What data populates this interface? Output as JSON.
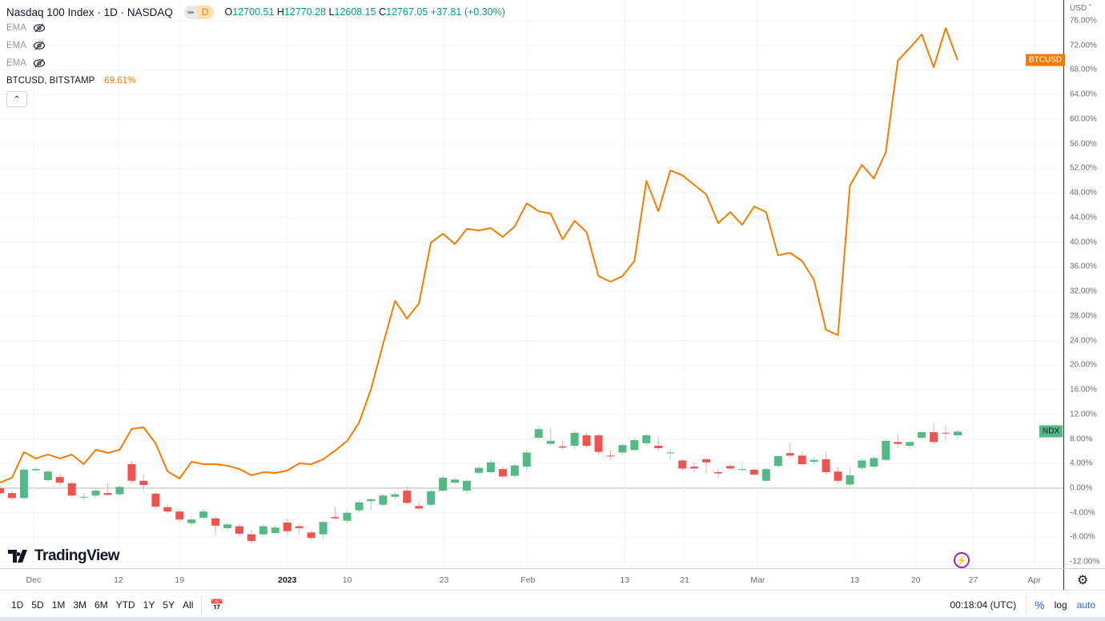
{
  "legend": {
    "title": "Nasdaq 100 Index · 1D · NASDAQ",
    "badge": "D",
    "o_label": "O",
    "o": "12700.51",
    "h_label": "H",
    "h": "12770.28",
    "l_label": "L",
    "l": "12608.15",
    "c_label": "C",
    "c": "12767.05",
    "change": "+37.81 (+0.30%)",
    "ema": [
      "EMA",
      "EMA",
      "EMA"
    ],
    "compare_symbol": "BTCUSD, BITSTAMP",
    "compare_value": "69.61%"
  },
  "axis": {
    "currency": "USD",
    "btc_tag": "BTCUSD",
    "ndx_tag": "NDX"
  },
  "colors": {
    "up": "#26a69a",
    "up_fill": "#53b987",
    "down": "#ef5350",
    "btc": "#f57c00",
    "grid": "#f0f3fa",
    "zero": "#b2b5be"
  },
  "brand": "TradingView",
  "toolbar": {
    "ranges": [
      "1D",
      "5D",
      "1M",
      "3M",
      "6M",
      "YTD",
      "1Y",
      "5Y",
      "All"
    ],
    "clock": "00:18:04 (UTC)",
    "percent": "%",
    "log": "log",
    "auto": "auto"
  },
  "chart_data": {
    "type": "line+candlestick",
    "ylabel": "%",
    "ylim": [
      -12,
      76
    ],
    "yticks": [
      -12,
      -8,
      -4,
      0,
      4,
      8,
      12,
      16,
      20,
      24,
      28,
      32,
      36,
      40,
      44,
      48,
      52,
      56,
      60,
      64,
      68,
      72,
      76
    ],
    "xticks": [
      {
        "label": "Dec",
        "x": 2.8
      },
      {
        "label": "12",
        "x": 9.9
      },
      {
        "label": "19",
        "x": 15.0
      },
      {
        "label": "2023",
        "x": 24.0,
        "bold": true
      },
      {
        "label": "10",
        "x": 29.0
      },
      {
        "label": "23",
        "x": 37.1
      },
      {
        "label": "Feb",
        "x": 44.1
      },
      {
        "label": "13",
        "x": 52.2
      },
      {
        "label": "21",
        "x": 57.2
      },
      {
        "label": "Mar",
        "x": 63.3
      },
      {
        "label": "13",
        "x": 71.4
      },
      {
        "label": "20",
        "x": 76.5
      },
      {
        "label": "27",
        "x": 81.3
      },
      {
        "label": "Apr",
        "x": 86.4
      }
    ],
    "series": [
      {
        "name": "BTCUSD",
        "kind": "line",
        "values": [
          0.91,
          1.69,
          5.86,
          4.82,
          5.47,
          4.82,
          5.47,
          3.9,
          6.25,
          5.73,
          6.25,
          9.63,
          9.89,
          7.29,
          2.73,
          1.56,
          4.29,
          3.9,
          3.9,
          3.64,
          3.12,
          2.08,
          2.6,
          2.47,
          2.86,
          4.03,
          3.9,
          4.69,
          6.12,
          7.68,
          10.67,
          16.14,
          23.43,
          30.45,
          27.59,
          30.06,
          39.95,
          41.38,
          39.69,
          42.17,
          41.91,
          42.3,
          40.86,
          42.56,
          46.33,
          45.03,
          44.64,
          40.47,
          43.47,
          41.64,
          34.49,
          33.58,
          34.49,
          36.96,
          49.97,
          45.03,
          51.67,
          50.88,
          49.32,
          47.76,
          43.08,
          44.9,
          42.82,
          45.81,
          44.9,
          37.87,
          38.26,
          36.96,
          33.84,
          25.77,
          24.86,
          49.19,
          52.58,
          50.36,
          54.66,
          69.5,
          71.58,
          73.79,
          68.45,
          74.83,
          69.61
        ]
      },
      {
        "name": "NDX",
        "kind": "candlestick",
        "ohlc": [
          [
            0,
            0.4,
            -1.1,
            -0.8
          ],
          [
            -0.8,
            -0.4,
            -2.0,
            -1.6
          ],
          [
            -1.6,
            3.3,
            -1.9,
            3.0
          ],
          [
            2.9,
            3.5,
            2.5,
            3.1
          ],
          [
            1.3,
            3.0,
            1.0,
            2.7
          ],
          [
            1.8,
            2.3,
            0.5,
            0.9
          ],
          [
            0.8,
            1.1,
            -1.5,
            -1.2
          ],
          [
            -1.5,
            -0.8,
            -2.0,
            -1.4
          ],
          [
            -1.2,
            0.2,
            -1.6,
            -0.4
          ],
          [
            -0.8,
            0.8,
            -1.3,
            -1.1
          ],
          [
            -1.0,
            0.5,
            -1.3,
            0.2
          ],
          [
            3.9,
            4.4,
            0.8,
            1.2
          ],
          [
            1.2,
            2.2,
            -0.3,
            0.5
          ],
          [
            -0.9,
            -0.6,
            -3.3,
            -3.0
          ],
          [
            -3.1,
            -2.6,
            -4.1,
            -3.8
          ],
          [
            -3.8,
            -3.5,
            -5.5,
            -5.1
          ],
          [
            -5.7,
            -4.6,
            -6.2,
            -5.1
          ],
          [
            -4.8,
            -3.3,
            -5.1,
            -3.8
          ],
          [
            -4.9,
            -4.5,
            -7.6,
            -6.1
          ],
          [
            -6.5,
            -5.6,
            -7.0,
            -5.9
          ],
          [
            -6.2,
            -5.8,
            -7.8,
            -7.4
          ],
          [
            -7.5,
            -6.8,
            -9.0,
            -8.6
          ],
          [
            -7.5,
            -5.9,
            -7.9,
            -6.2
          ],
          [
            -7.3,
            -6.0,
            -7.6,
            -6.4
          ],
          [
            -5.6,
            -5.0,
            -7.5,
            -7.0
          ],
          [
            -6.2,
            -5.8,
            -7.6,
            -6.5
          ],
          [
            -7.2,
            -6.9,
            -8.4,
            -8.1
          ],
          [
            -7.5,
            -5.2,
            -8.4,
            -5.5
          ],
          [
            -4.7,
            -3.1,
            -5.2,
            -4.9
          ],
          [
            -5.3,
            -3.7,
            -5.6,
            -4.0
          ],
          [
            -3.6,
            -2.0,
            -3.9,
            -2.3
          ],
          [
            -2.1,
            -1.7,
            -3.6,
            -1.8
          ],
          [
            -2.7,
            -0.9,
            -3.0,
            -1.2
          ],
          [
            -1.4,
            -0.6,
            -1.9,
            -1.0
          ],
          [
            -0.4,
            0.3,
            -2.7,
            -2.4
          ],
          [
            -2.9,
            -2.3,
            -3.6,
            -3.3
          ],
          [
            -2.7,
            -0.2,
            -3.0,
            -0.5
          ],
          [
            -0.4,
            2.2,
            -0.7,
            1.7
          ],
          [
            0.9,
            1.8,
            0.6,
            1.4
          ],
          [
            -0.4,
            1.5,
            -0.9,
            1.2
          ],
          [
            2.5,
            3.6,
            2.2,
            3.3
          ],
          [
            2.6,
            4.6,
            2.3,
            4.2
          ],
          [
            3.1,
            3.5,
            1.6,
            1.9
          ],
          [
            2.0,
            4.0,
            1.7,
            3.7
          ],
          [
            3.5,
            6.3,
            2.6,
            5.8
          ],
          [
            8.2,
            10.1,
            7.8,
            9.6
          ],
          [
            7.2,
            9.8,
            6.9,
            7.7
          ],
          [
            6.8,
            7.7,
            6.3,
            6.6
          ],
          [
            6.9,
            9.4,
            6.4,
            9.0
          ],
          [
            8.6,
            9.0,
            6.6,
            6.9
          ],
          [
            8.6,
            8.8,
            5.5,
            5.9
          ],
          [
            5.3,
            6.2,
            4.6,
            5.2
          ],
          [
            5.8,
            7.2,
            5.5,
            7.0
          ],
          [
            6.2,
            8.1,
            6.0,
            7.8
          ],
          [
            7.3,
            8.8,
            6.9,
            8.6
          ],
          [
            6.9,
            8.3,
            6.1,
            6.5
          ],
          [
            5.7,
            6.2,
            4.6,
            5.8
          ],
          [
            4.5,
            4.8,
            2.9,
            3.2
          ],
          [
            3.5,
            4.2,
            2.6,
            3.2
          ],
          [
            4.7,
            4.9,
            2.4,
            4.2
          ],
          [
            2.6,
            3.1,
            1.7,
            2.4
          ],
          [
            3.6,
            4.0,
            2.9,
            3.2
          ],
          [
            3.0,
            4.2,
            2.7,
            3.1
          ],
          [
            3.0,
            3.3,
            2.0,
            2.2
          ],
          [
            1.2,
            3.4,
            0.9,
            3.1
          ],
          [
            3.6,
            5.5,
            3.4,
            5.2
          ],
          [
            5.7,
            7.2,
            5.1,
            5.3
          ],
          [
            5.3,
            5.9,
            3.6,
            3.9
          ],
          [
            4.3,
            5.1,
            3.8,
            4.6
          ],
          [
            4.7,
            6.0,
            2.2,
            2.6
          ],
          [
            2.7,
            3.3,
            0.7,
            1.2
          ],
          [
            0.6,
            3.4,
            0.3,
            2.1
          ],
          [
            3.3,
            4.8,
            2.9,
            4.5
          ],
          [
            3.5,
            5.3,
            3.2,
            4.9
          ],
          [
            4.6,
            8.0,
            4.4,
            7.7
          ],
          [
            7.5,
            8.8,
            6.6,
            7.2
          ],
          [
            6.9,
            7.8,
            6.4,
            7.5
          ],
          [
            8.2,
            9.4,
            7.9,
            9.1
          ],
          [
            9.1,
            10.6,
            7.2,
            7.5
          ],
          [
            9.0,
            10.2,
            7.8,
            8.9
          ],
          [
            8.6,
            9.5,
            7.9,
            9.2
          ]
        ]
      }
    ],
    "grid": true,
    "legend": "top-left"
  }
}
